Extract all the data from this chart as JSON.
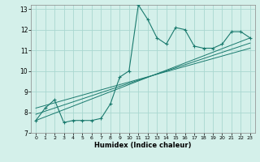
{
  "xlabel": "Humidex (Indice chaleur)",
  "ylabel": "",
  "bg_color": "#d4f0ea",
  "grid_color": "#aad8d0",
  "line_color": "#1a7a6e",
  "xlim": [
    -0.5,
    23.5
  ],
  "ylim": [
    7,
    13.2
  ],
  "yticks": [
    7,
    8,
    9,
    10,
    11,
    12,
    13
  ],
  "xticks": [
    0,
    1,
    2,
    3,
    4,
    5,
    6,
    7,
    8,
    9,
    10,
    11,
    12,
    13,
    14,
    15,
    16,
    17,
    18,
    19,
    20,
    21,
    22,
    23
  ],
  "series_main": {
    "x": [
      0,
      1,
      2,
      3,
      4,
      5,
      6,
      7,
      8,
      9,
      10,
      11,
      12,
      13,
      14,
      15,
      16,
      17,
      18,
      19,
      20,
      21,
      22,
      23
    ],
    "y": [
      7.6,
      8.2,
      8.6,
      7.5,
      7.6,
      7.6,
      7.6,
      7.7,
      8.4,
      9.7,
      10.0,
      13.2,
      12.5,
      11.6,
      11.3,
      12.1,
      12.0,
      11.2,
      11.1,
      11.1,
      11.3,
      11.9,
      11.9,
      11.6
    ]
  },
  "series_linear": [
    {
      "x": [
        0,
        23
      ],
      "y": [
        7.6,
        11.6
      ]
    },
    {
      "x": [
        0,
        23
      ],
      "y": [
        7.9,
        11.35
      ]
    },
    {
      "x": [
        0,
        23
      ],
      "y": [
        8.2,
        11.1
      ]
    }
  ]
}
